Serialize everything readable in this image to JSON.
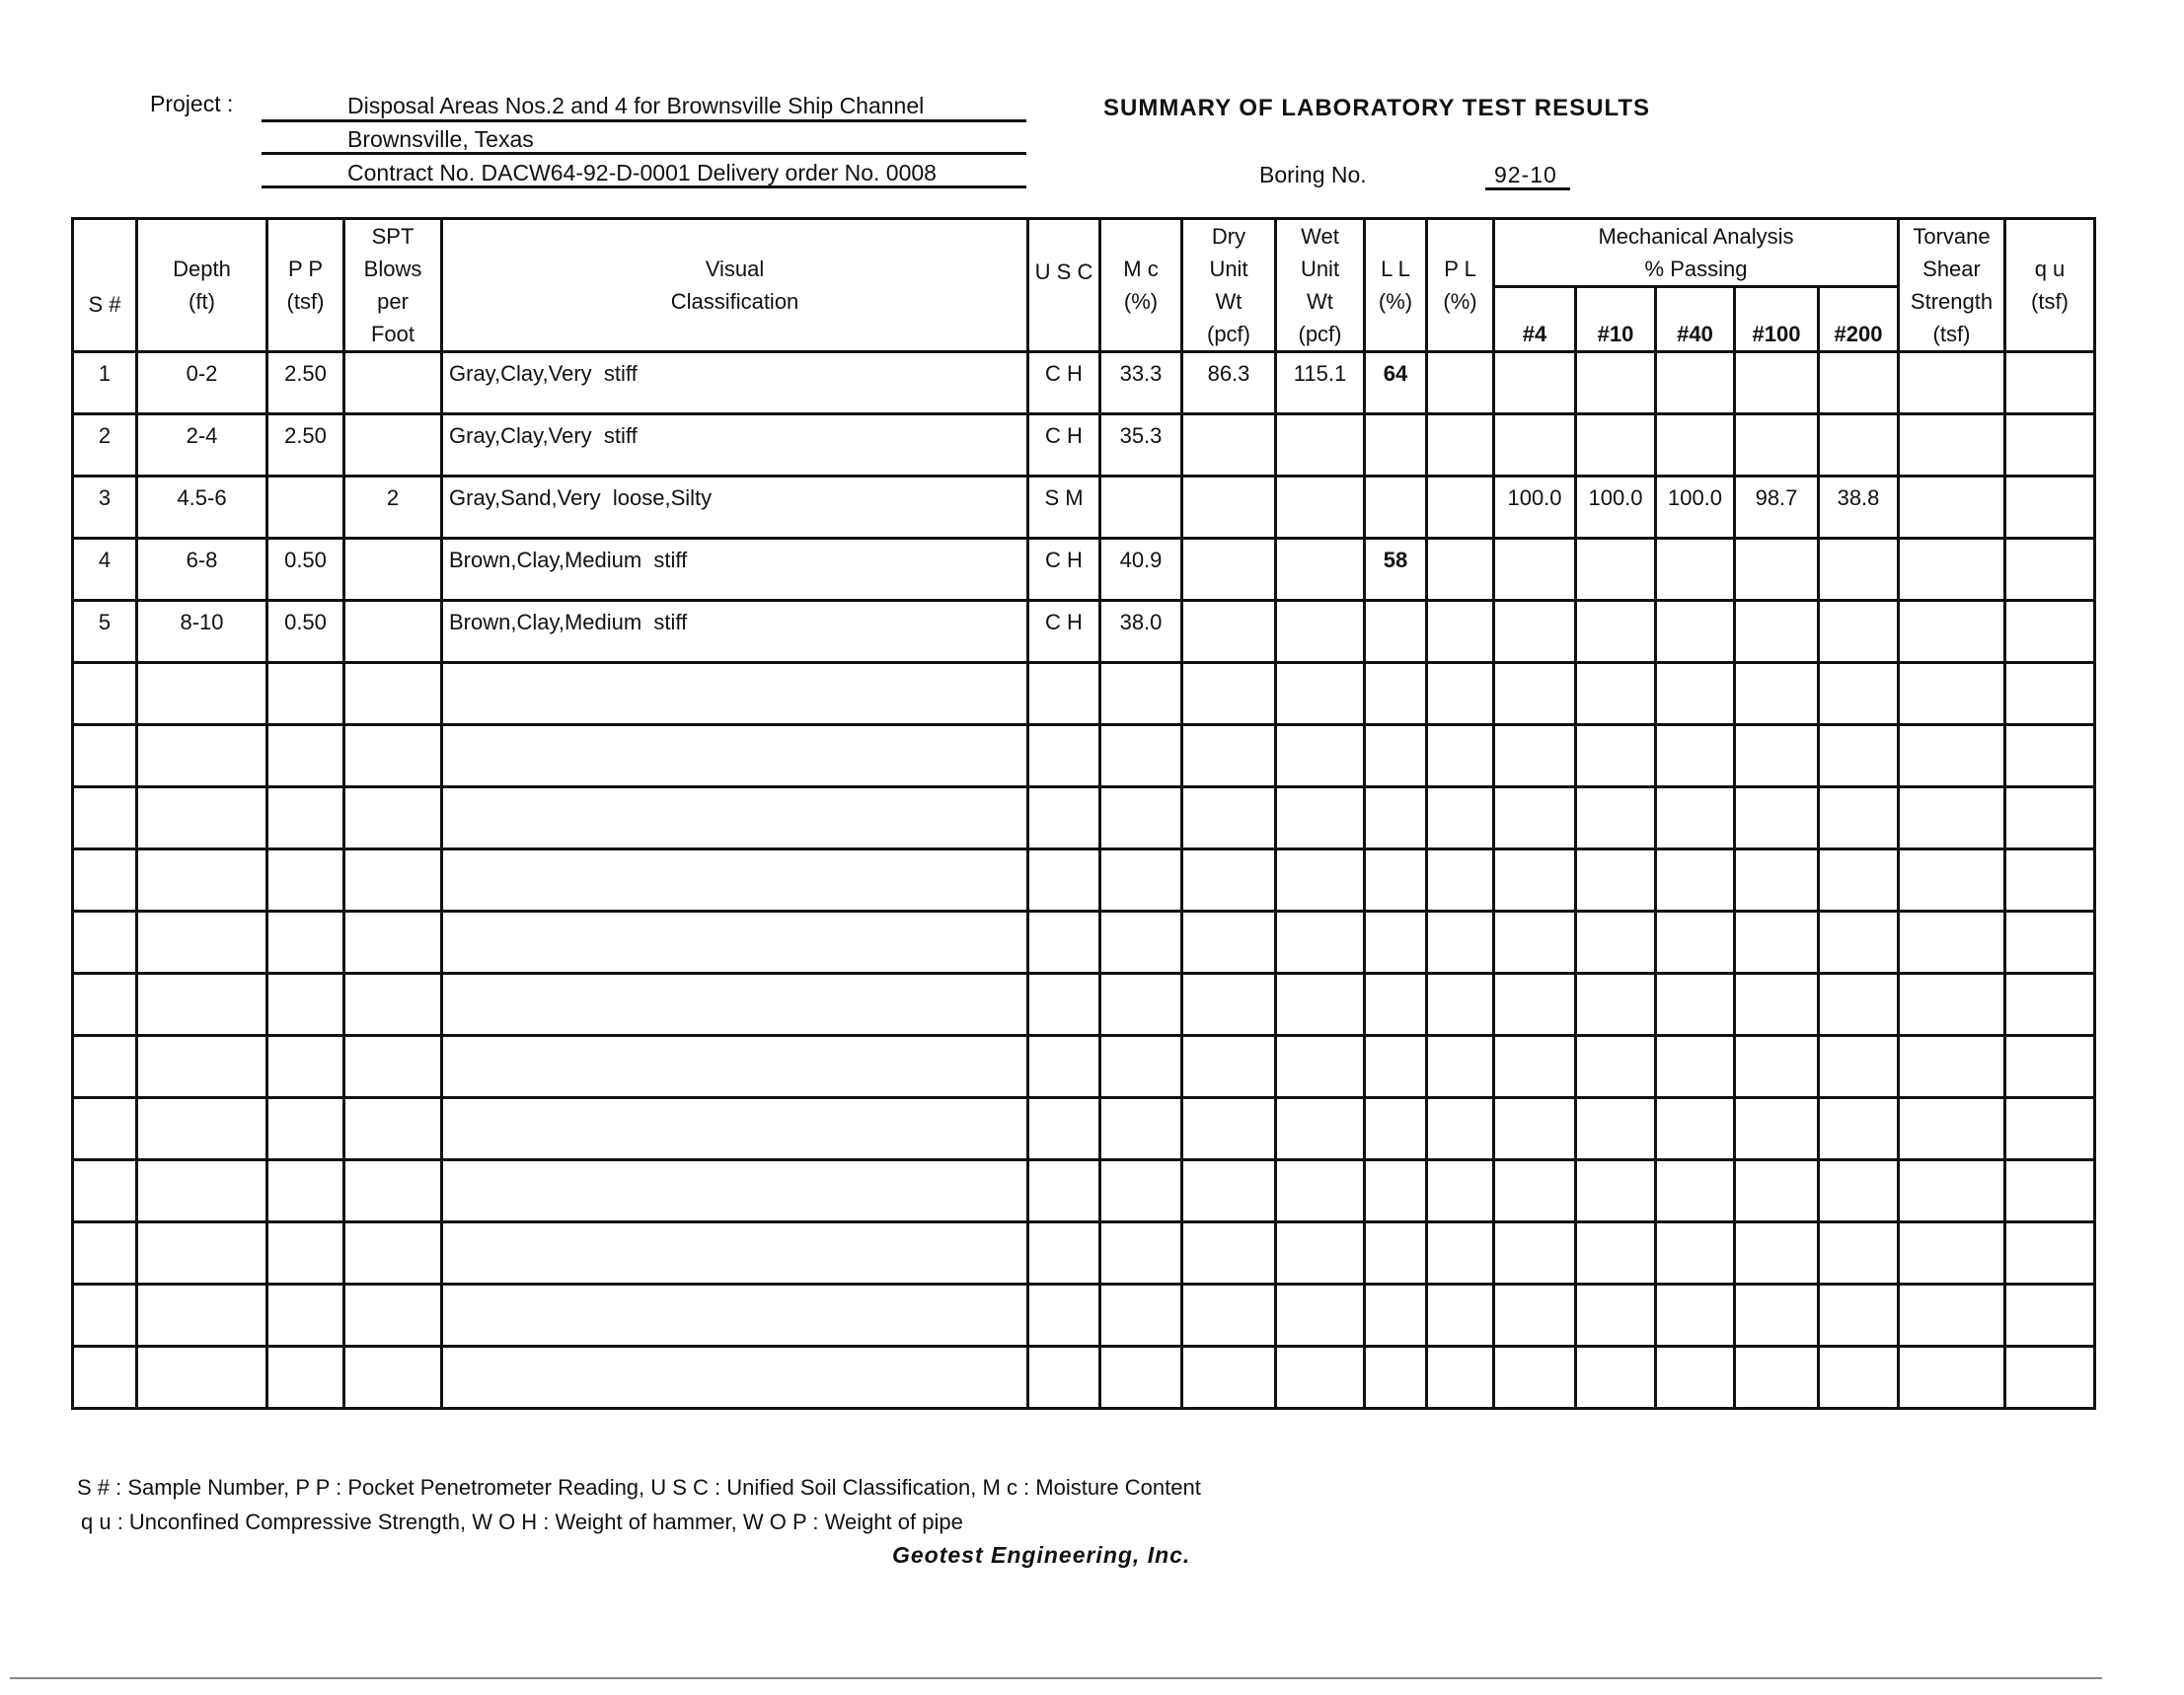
{
  "header": {
    "project_label": "Project :",
    "project_line1": "Disposal Areas Nos.2 and 4 for Brownsville Ship Channel",
    "project_line2": "Brownsville, Texas",
    "project_line3": "Contract No. DACW64-92-D-0001   Delivery order No. 0008",
    "title": "SUMMARY OF LABORATORY TEST RESULTS",
    "boring_label": "Boring No.",
    "boring_value": "92-10"
  },
  "table": {
    "columns": {
      "s": "S #",
      "depth": [
        "Depth",
        "(ft)"
      ],
      "pp": [
        "P P",
        "(tsf)"
      ],
      "spt": [
        "SPT",
        "Blows",
        "per",
        "Foot"
      ],
      "visual": [
        "Visual",
        "Classification"
      ],
      "usc": "U S C",
      "mc": [
        "M c",
        "(%)"
      ],
      "dry": [
        "Dry",
        "Unit",
        "Wt",
        "(pcf)"
      ],
      "wet": [
        "Wet",
        "Unit",
        "Wt",
        "(pcf)"
      ],
      "ll": [
        "L L",
        "(%)"
      ],
      "pl": [
        "P L",
        "(%)"
      ],
      "mech": [
        "Mechanical Analysis",
        "% Passing"
      ],
      "sieves": [
        "#4",
        "#10",
        "#40",
        "#100",
        "#200"
      ],
      "torvane": [
        "Torvane",
        "Shear",
        "Strength",
        "(tsf)"
      ],
      "qu": [
        "q u",
        "(tsf)"
      ]
    },
    "rows": [
      {
        "s": "1",
        "depth": "0-2",
        "pp": "2.50",
        "spt": "",
        "visual": "Gray,Clay,Very  stiff",
        "usc": "C H",
        "mc": "33.3",
        "dry": "86.3",
        "wet": "115.1",
        "ll": "64",
        "pl": "",
        "sieves": [
          "",
          "",
          "",
          "",
          ""
        ],
        "torvane": "",
        "qu": ""
      },
      {
        "s": "2",
        "depth": "2-4",
        "pp": "2.50",
        "spt": "",
        "visual": "Gray,Clay,Very  stiff",
        "usc": "C H",
        "mc": "35.3",
        "dry": "",
        "wet": "",
        "ll": "",
        "pl": "",
        "sieves": [
          "",
          "",
          "",
          "",
          ""
        ],
        "torvane": "",
        "qu": ""
      },
      {
        "s": "3",
        "depth": "4.5-6",
        "pp": "",
        "spt": "2",
        "visual": "Gray,Sand,Very  loose,Silty",
        "usc": "S M",
        "mc": "",
        "dry": "",
        "wet": "",
        "ll": "",
        "pl": "",
        "sieves": [
          "100.0",
          "100.0",
          "100.0",
          "98.7",
          "38.8"
        ],
        "torvane": "",
        "qu": ""
      },
      {
        "s": "4",
        "depth": "6-8",
        "pp": "0.50",
        "spt": "",
        "visual": "Brown,Clay,Medium  stiff",
        "usc": "C H",
        "mc": "40.9",
        "dry": "",
        "wet": "",
        "ll": "58",
        "pl": "",
        "sieves": [
          "",
          "",
          "",
          "",
          ""
        ],
        "torvane": "",
        "qu": ""
      },
      {
        "s": "5",
        "depth": "8-10",
        "pp": "0.50",
        "spt": "",
        "visual": "Brown,Clay,Medium  stiff",
        "usc": "C H",
        "mc": "38.0",
        "dry": "",
        "wet": "",
        "ll": "",
        "pl": "",
        "sieves": [
          "",
          "",
          "",
          "",
          ""
        ],
        "torvane": "",
        "qu": ""
      }
    ],
    "empty_rows": 12
  },
  "footer": {
    "legend1": "S # : Sample Number, P P : Pocket Penetrometer Reading, U S C : Unified Soil Classification, M c : Moisture Content",
    "legend2": "q u : Unconfined Compressive Strength, W O H : Weight of hammer, W O P : Weight of pipe",
    "company": "Geotest  Engineering,  Inc."
  }
}
